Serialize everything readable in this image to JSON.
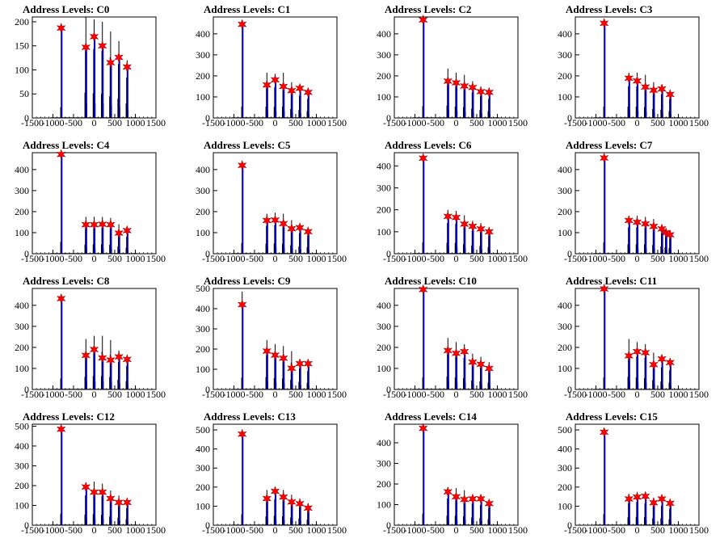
{
  "figure": {
    "colors": {
      "pattern_fill": "#0000ff",
      "peak_star": "#ff0000",
      "axis": "#000000",
      "histogram": "#000000"
    }
  },
  "chart_data": [
    {
      "type": "bar",
      "title": "Address Levels: C0",
      "xlim": [
        -1500,
        1500
      ],
      "ylim": [
        0,
        210
      ],
      "yticks": [
        0,
        50,
        100,
        150,
        200
      ],
      "xticks": [
        -1500,
        -1000,
        -500,
        0,
        500,
        1000,
        1500
      ],
      "peaks_x": [
        -800,
        -200,
        0,
        200,
        400,
        600,
        800
      ],
      "peaks_y": [
        187,
        147,
        169,
        150,
        115,
        126,
        106
      ],
      "bar_max": [
        185,
        210,
        205,
        200,
        180,
        160,
        120
      ]
    },
    {
      "type": "bar",
      "title": "Address Levels: C1",
      "xlim": [
        -1500,
        1500
      ],
      "ylim": [
        0,
        480
      ],
      "yticks": [
        0,
        100,
        200,
        300,
        400
      ],
      "xticks": [
        -1500,
        -1000,
        -500,
        0,
        500,
        1000,
        1500
      ],
      "peaks_x": [
        -800,
        -200,
        0,
        200,
        400,
        600,
        800
      ],
      "peaks_y": [
        445,
        157,
        181,
        150,
        130,
        141,
        122
      ],
      "bar_max": [
        445,
        215,
        210,
        215,
        170,
        150,
        130
      ]
    },
    {
      "type": "bar",
      "title": "Address Levels: C2",
      "xlim": [
        -1500,
        1500
      ],
      "ylim": [
        0,
        480
      ],
      "yticks": [
        0,
        100,
        200,
        300,
        400
      ],
      "xticks": [
        -1500,
        -1000,
        -500,
        0,
        500,
        1000,
        1500
      ],
      "peaks_x": [
        -800,
        -200,
        0,
        200,
        400,
        600,
        800
      ],
      "peaks_y": [
        466,
        175,
        167,
        152,
        145,
        125,
        122
      ],
      "bar_max": [
        466,
        235,
        215,
        205,
        175,
        150,
        130
      ]
    },
    {
      "type": "bar",
      "title": "Address Levels: C3",
      "xlim": [
        -1500,
        1500
      ],
      "ylim": [
        0,
        480
      ],
      "yticks": [
        0,
        100,
        200,
        300,
        400
      ],
      "xticks": [
        -1500,
        -1000,
        -500,
        0,
        500,
        1000,
        1500
      ],
      "peaks_x": [
        -800,
        -200,
        0,
        200,
        400,
        600,
        800
      ],
      "peaks_y": [
        450,
        189,
        176,
        147,
        132,
        138,
        112
      ],
      "bar_max": [
        450,
        215,
        215,
        205,
        170,
        160,
        130
      ]
    },
    {
      "type": "bar",
      "title": "Address Levels: C4",
      "xlim": [
        -1500,
        1500
      ],
      "ylim": [
        0,
        480
      ],
      "yticks": [
        0,
        100,
        200,
        300,
        400
      ],
      "xticks": [
        -1500,
        -1000,
        -500,
        0,
        500,
        1000,
        1500
      ],
      "peaks_x": [
        -800,
        -200,
        0,
        200,
        400,
        600,
        800
      ],
      "peaks_y": [
        472,
        138,
        138,
        140,
        138,
        98,
        110
      ],
      "bar_max": [
        472,
        175,
        175,
        175,
        170,
        140,
        115
      ]
    },
    {
      "type": "bar",
      "title": "Address Levels: C5",
      "xlim": [
        -1500,
        1500
      ],
      "ylim": [
        0,
        480
      ],
      "yticks": [
        0,
        100,
        200,
        300,
        400
      ],
      "xticks": [
        -1500,
        -1000,
        -500,
        0,
        500,
        1000,
        1500
      ],
      "peaks_x": [
        -800,
        -200,
        0,
        200,
        400,
        600,
        800
      ],
      "peaks_y": [
        420,
        158,
        160,
        143,
        119,
        124,
        105
      ],
      "bar_max": [
        420,
        190,
        195,
        190,
        160,
        140,
        125
      ]
    },
    {
      "type": "bar",
      "title": "Address Levels: C6",
      "xlim": [
        -1500,
        1500
      ],
      "ylim": [
        0,
        460
      ],
      "yticks": [
        0,
        100,
        200,
        300,
        400
      ],
      "xticks": [
        -1500,
        -1000,
        -500,
        0,
        500,
        1000,
        1500
      ],
      "peaks_x": [
        -800,
        -200,
        0,
        200,
        400,
        600,
        800
      ],
      "peaks_y": [
        435,
        170,
        165,
        135,
        125,
        113,
        100
      ],
      "bar_max": [
        435,
        200,
        195,
        175,
        150,
        140,
        120
      ]
    },
    {
      "type": "bar",
      "title": "Address Levels: C7",
      "xlim": [
        -1500,
        1500
      ],
      "ylim": [
        0,
        480
      ],
      "yticks": [
        0,
        100,
        200,
        300,
        400
      ],
      "xticks": [
        -1500,
        -1000,
        -500,
        0,
        500,
        1000,
        1500
      ],
      "peaks_x": [
        -800,
        -200,
        0,
        200,
        400,
        600,
        700,
        800
      ],
      "peaks_y": [
        455,
        158,
        150,
        142,
        130,
        118,
        100,
        90
      ],
      "bar_max": [
        455,
        180,
        180,
        175,
        165,
        140,
        120,
        110
      ]
    },
    {
      "type": "bar",
      "title": "Address Levels: C8",
      "xlim": [
        -1500,
        1500
      ],
      "ylim": [
        0,
        480
      ],
      "yticks": [
        0,
        100,
        200,
        300,
        400
      ],
      "xticks": [
        -1500,
        -1000,
        -500,
        0,
        500,
        1000,
        1500
      ],
      "peaks_x": [
        -800,
        -200,
        0,
        200,
        400,
        600,
        800
      ],
      "peaks_y": [
        432,
        162,
        190,
        150,
        140,
        155,
        143
      ],
      "bar_max": [
        432,
        240,
        255,
        255,
        235,
        185,
        160
      ]
    },
    {
      "type": "bar",
      "title": "Address Levels: C9",
      "xlim": [
        -1500,
        1500
      ],
      "ylim": [
        0,
        500
      ],
      "yticks": [
        0,
        100,
        200,
        300,
        400,
        500
      ],
      "xticks": [
        -1500,
        -1000,
        -500,
        0,
        500,
        1000,
        1500
      ],
      "peaks_x": [
        -800,
        -200,
        0,
        200,
        400,
        600,
        800
      ],
      "peaks_y": [
        420,
        190,
        170,
        155,
        105,
        128,
        128
      ],
      "bar_max": [
        485,
        245,
        225,
        215,
        190,
        150,
        130
      ]
    },
    {
      "type": "bar",
      "title": "Address Levels: C10",
      "xlim": [
        -1500,
        1500
      ],
      "ylim": [
        0,
        480
      ],
      "yticks": [
        0,
        100,
        200,
        300,
        400
      ],
      "xticks": [
        -1500,
        -1000,
        -500,
        0,
        500,
        1000,
        1500
      ],
      "peaks_x": [
        -800,
        -200,
        0,
        200,
        400,
        600,
        800
      ],
      "peaks_y": [
        475,
        185,
        172,
        180,
        130,
        120,
        100
      ],
      "bar_max": [
        475,
        245,
        225,
        215,
        170,
        155,
        130
      ]
    },
    {
      "type": "bar",
      "title": "Address Levels: C11",
      "xlim": [
        -1500,
        1500
      ],
      "ylim": [
        0,
        480
      ],
      "yticks": [
        0,
        100,
        200,
        300,
        400
      ],
      "xticks": [
        -1500,
        -1000,
        -500,
        0,
        500,
        1000,
        1500
      ],
      "peaks_x": [
        -800,
        -200,
        0,
        200,
        400,
        600,
        800
      ],
      "peaks_y": [
        478,
        160,
        180,
        175,
        118,
        145,
        128
      ],
      "bar_max": [
        478,
        240,
        225,
        215,
        175,
        150,
        130
      ]
    },
    {
      "type": "bar",
      "title": "Address Levels: C12",
      "xlim": [
        -1500,
        1500
      ],
      "ylim": [
        0,
        510
      ],
      "yticks": [
        0,
        100,
        200,
        300,
        400,
        500
      ],
      "xticks": [
        -1500,
        -1000,
        -500,
        0,
        500,
        1000,
        1500
      ],
      "peaks_x": [
        -800,
        -200,
        0,
        200,
        400,
        600,
        800
      ],
      "peaks_y": [
        485,
        193,
        167,
        167,
        135,
        115,
        115
      ],
      "bar_max": [
        485,
        215,
        220,
        210,
        175,
        150,
        125
      ]
    },
    {
      "type": "bar",
      "title": "Address Levels: C13",
      "xlim": [
        -1500,
        1500
      ],
      "ylim": [
        0,
        530
      ],
      "yticks": [
        0,
        100,
        200,
        300,
        400,
        500
      ],
      "xticks": [
        -1500,
        -1000,
        -500,
        0,
        500,
        1000,
        1500
      ],
      "peaks_x": [
        -800,
        -200,
        0,
        200,
        400,
        600,
        800
      ],
      "peaks_y": [
        478,
        140,
        178,
        148,
        122,
        113,
        90
      ],
      "bar_max": [
        478,
        185,
        195,
        185,
        160,
        140,
        115
      ]
    },
    {
      "type": "bar",
      "title": "Address Levels: C14",
      "xlim": [
        -1500,
        1500
      ],
      "ylim": [
        0,
        490
      ],
      "yticks": [
        0,
        100,
        200,
        300,
        400
      ],
      "xticks": [
        -1500,
        -1000,
        -500,
        0,
        500,
        1000,
        1500
      ],
      "peaks_x": [
        -800,
        -200,
        0,
        200,
        400,
        600,
        800
      ],
      "peaks_y": [
        470,
        162,
        138,
        125,
        128,
        128,
        105
      ],
      "bar_max": [
        470,
        185,
        180,
        170,
        150,
        140,
        120
      ]
    },
    {
      "type": "bar",
      "title": "Address Levels: C15",
      "xlim": [
        -1500,
        1500
      ],
      "ylim": [
        0,
        530
      ],
      "yticks": [
        0,
        100,
        200,
        300,
        400,
        500
      ],
      "xticks": [
        -1500,
        -1000,
        -500,
        0,
        500,
        1000,
        1500
      ],
      "peaks_x": [
        -800,
        -200,
        0,
        200,
        400,
        600,
        800
      ],
      "peaks_y": [
        488,
        138,
        148,
        152,
        118,
        138,
        115
      ],
      "bar_max": [
        488,
        165,
        175,
        165,
        145,
        145,
        125
      ]
    }
  ]
}
